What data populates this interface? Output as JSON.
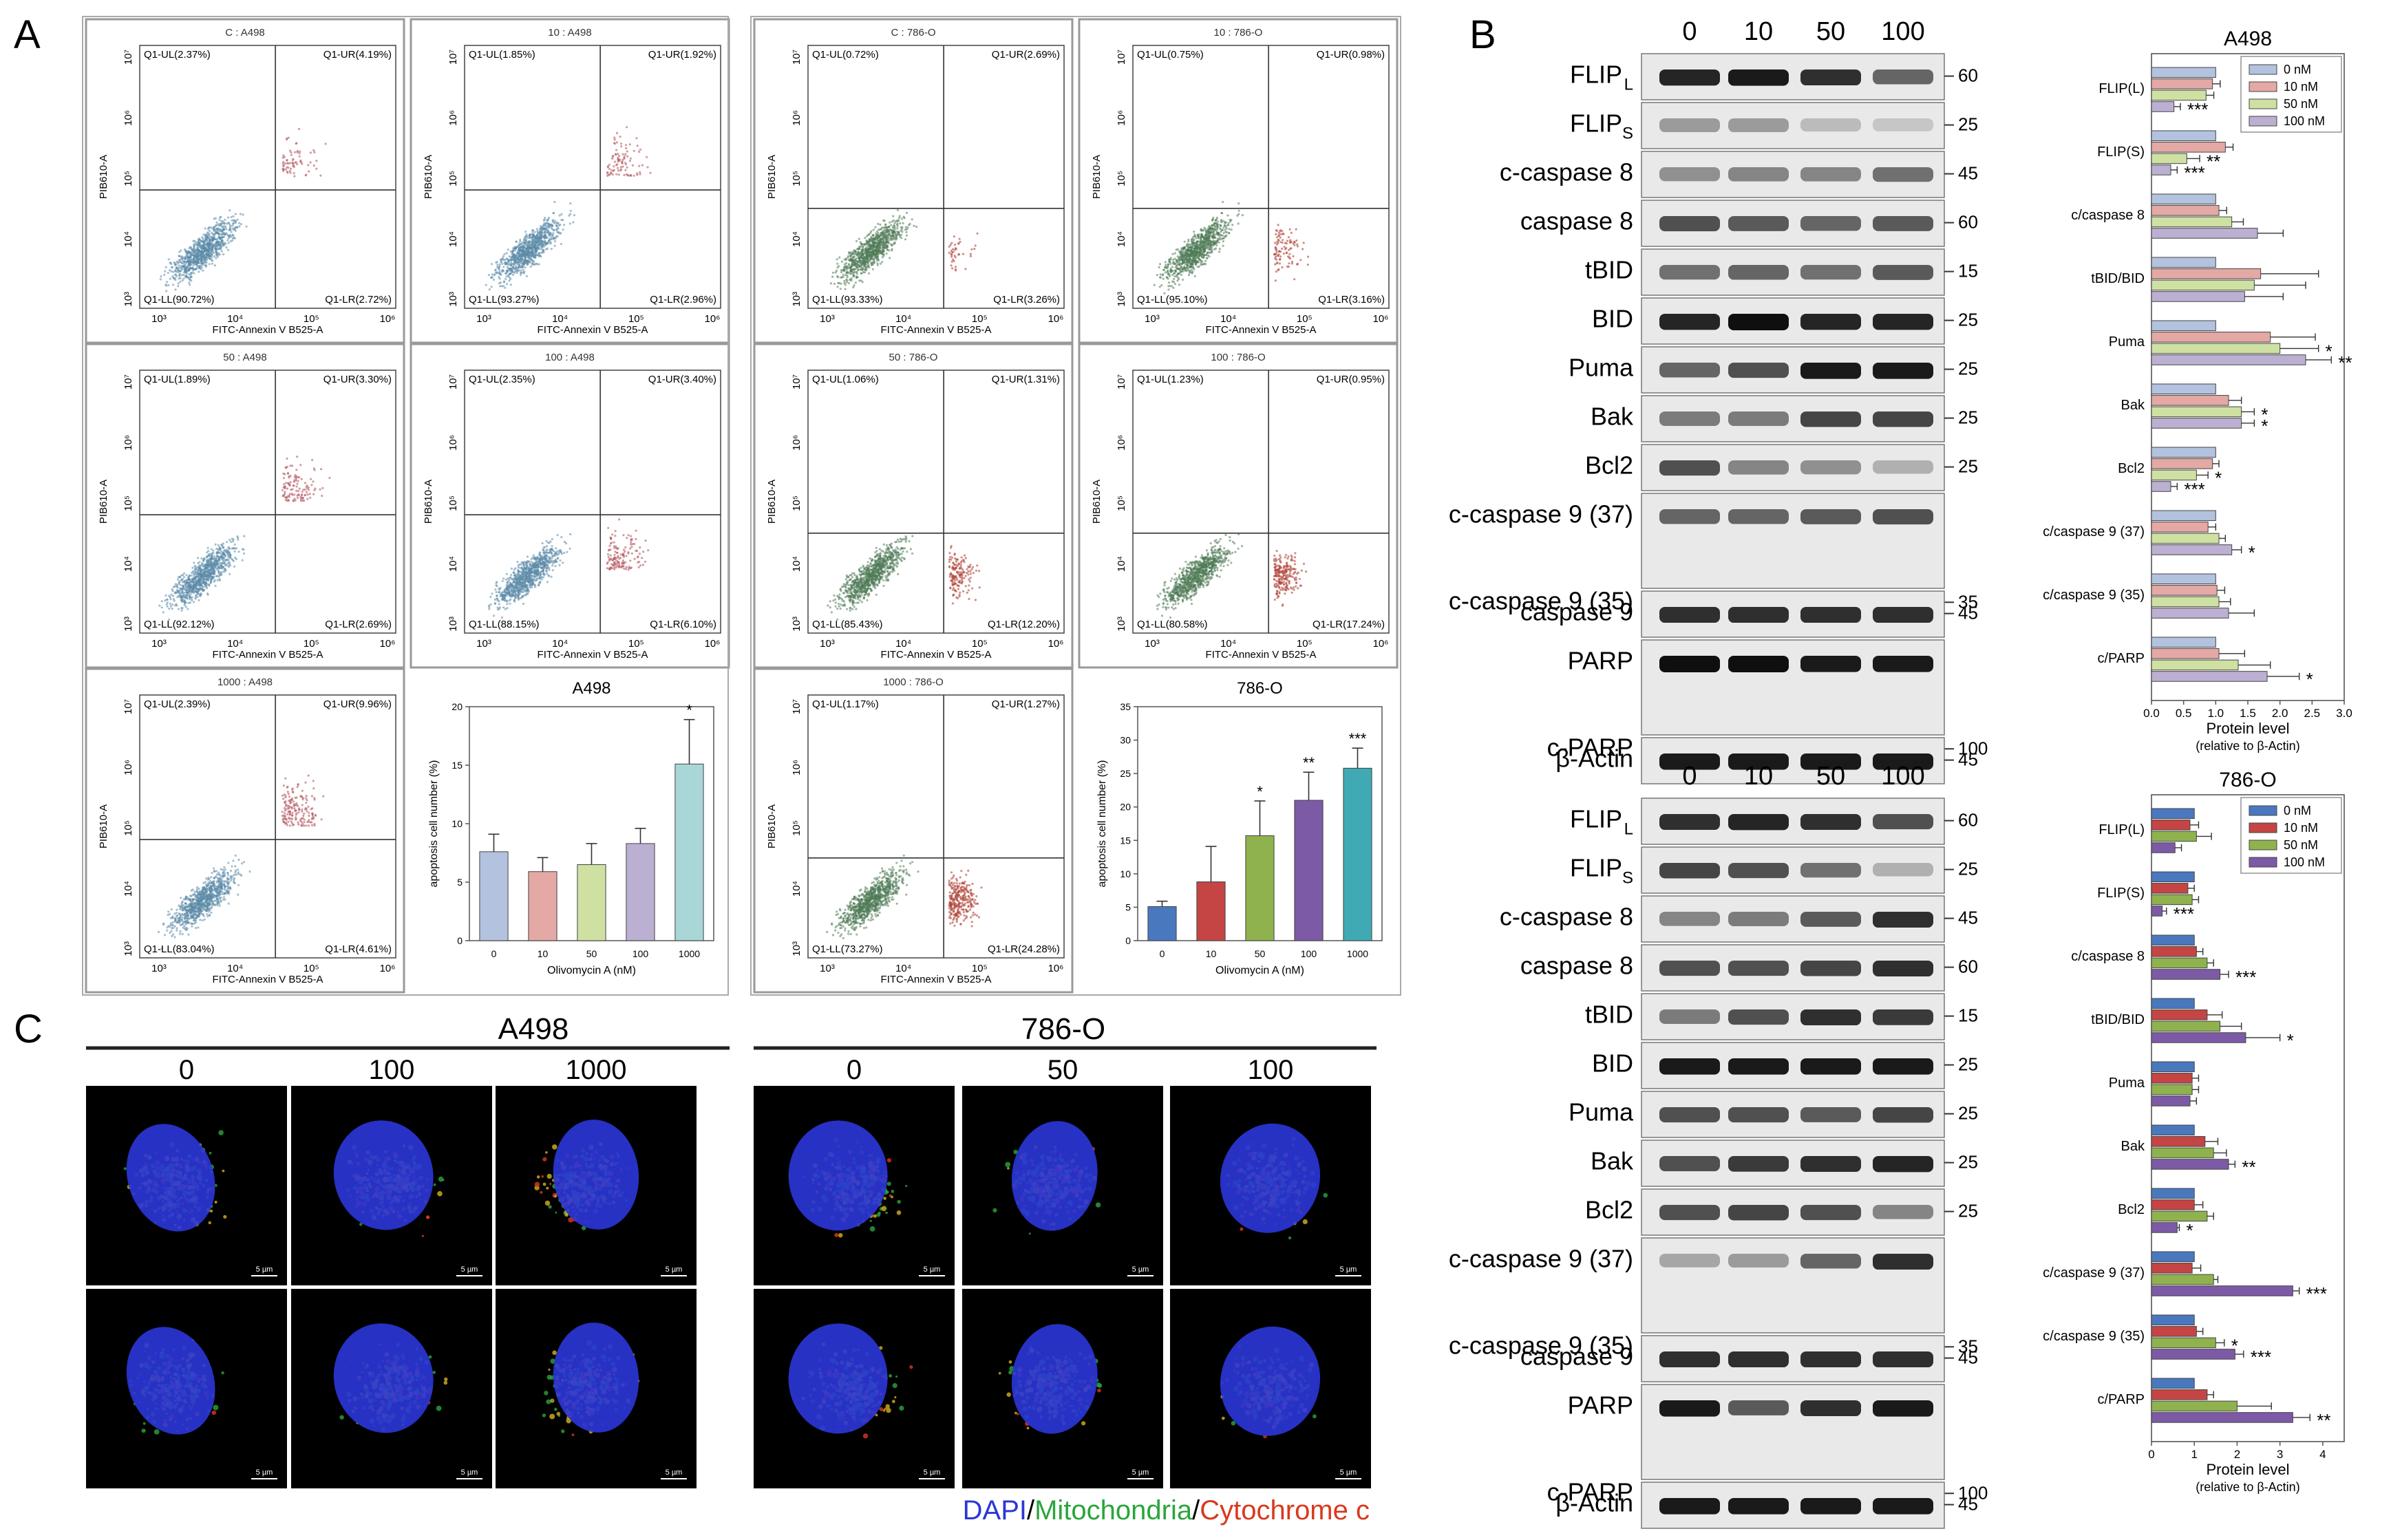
{
  "panels": {
    "a": "A",
    "b": "B",
    "c": "C"
  },
  "colors": {
    "a498_dots": "#5b8aa8",
    "a498_dots_ur": "#b65a62",
    "o786_dots": "#4f7a56",
    "o786_dots_lr": "#b0463a",
    "a498_bars": [
      "#b3c2de",
      "#e4a8a5",
      "#cfe0a3",
      "#bcb0d2",
      "#a9d6d6"
    ],
    "o786_bars": [
      "#4a78bf",
      "#c44544",
      "#8fb24e",
      "#7c5aa6",
      "#3faab3"
    ],
    "dapi": "#2b36d8",
    "mito": "#2aa53a",
    "cyto": "#d9391e",
    "blot_band": "#161616"
  },
  "flow": {
    "x_axis_label": "FITC-Annexin V B525-A",
    "y_axis_label": "PIB610-A",
    "x_ticks": [
      "10³",
      "10⁴",
      "10⁵",
      "10⁶"
    ],
    "y_ticks": [
      "10³",
      "10⁴",
      "10⁵",
      "10⁶",
      "10⁷"
    ],
    "a498": [
      {
        "title": "C : A498",
        "ul": "Q1-UL(2.37%)",
        "ur": "Q1-UR(4.19%)",
        "ll": "Q1-LL(90.72%)",
        "lr": "Q1-LR(2.72%)"
      },
      {
        "title": "10 : A498",
        "ul": "Q1-UL(1.85%)",
        "ur": "Q1-UR(1.92%)",
        "ll": "Q1-LL(93.27%)",
        "lr": "Q1-LR(2.96%)"
      },
      {
        "title": "50 : A498",
        "ul": "Q1-UL(1.89%)",
        "ur": "Q1-UR(3.30%)",
        "ll": "Q1-LL(92.12%)",
        "lr": "Q1-LR(2.69%)"
      },
      {
        "title": "100 : A498",
        "ul": "Q1-UL(2.35%)",
        "ur": "Q1-UR(3.40%)",
        "ll": "Q1-LL(88.15%)",
        "lr": "Q1-LR(6.10%)"
      },
      {
        "title": "1000 : A498",
        "ul": "Q1-UL(2.39%)",
        "ur": "Q1-UR(9.96%)",
        "ll": "Q1-LL(83.04%)",
        "lr": "Q1-LR(4.61%)"
      }
    ],
    "o786": [
      {
        "title": "C : 786-O",
        "ul": "Q1-UL(0.72%)",
        "ur": "Q1-UR(2.69%)",
        "ll": "Q1-LL(93.33%)",
        "lr": "Q1-LR(3.26%)"
      },
      {
        "title": "10 : 786-O",
        "ul": "Q1-UL(0.75%)",
        "ur": "Q1-UR(0.98%)",
        "ll": "Q1-LL(95.10%)",
        "lr": "Q1-LR(3.16%)"
      },
      {
        "title": "50 : 786-O",
        "ul": "Q1-UL(1.06%)",
        "ur": "Q1-UR(1.31%)",
        "ll": "Q1-LL(85.43%)",
        "lr": "Q1-LR(12.20%)"
      },
      {
        "title": "100 : 786-O",
        "ul": "Q1-UL(1.23%)",
        "ur": "Q1-UR(0.95%)",
        "ll": "Q1-LL(80.58%)",
        "lr": "Q1-LR(17.24%)"
      },
      {
        "title": "1000 : 786-O",
        "ul": "Q1-UL(1.17%)",
        "ur": "Q1-UR(1.27%)",
        "ll": "Q1-LL(73.27%)",
        "lr": "Q1-LR(24.28%)"
      }
    ]
  },
  "chart_data": [
    {
      "type": "bar",
      "title": "A498",
      "categories": [
        "0",
        "10",
        "50",
        "100",
        "1000"
      ],
      "values": [
        7.6,
        5.9,
        6.5,
        8.3,
        15.1
      ],
      "errors": [
        1.5,
        1.2,
        1.8,
        1.3,
        3.8
      ],
      "significance": [
        "",
        "",
        "",
        "",
        "*"
      ],
      "xlabel": "Olivomycin A (nM)",
      "ylabel": "apoptosis cell number (%)",
      "ylim": [
        0,
        20
      ],
      "yticks": [
        0,
        5,
        10,
        15,
        20
      ]
    },
    {
      "type": "bar",
      "title": "786-O",
      "categories": [
        "0",
        "10",
        "50",
        "100",
        "1000"
      ],
      "values": [
        5.1,
        8.8,
        15.7,
        21.0,
        25.8
      ],
      "errors": [
        0.8,
        5.3,
        5.2,
        4.2,
        3.0
      ],
      "significance": [
        "",
        "",
        "*",
        "**",
        "***"
      ],
      "xlabel": "Olivomycin A (nM)",
      "ylabel": "apoptosis cell number (%)",
      "ylim": [
        0,
        35
      ],
      "yticks": [
        0,
        5,
        10,
        15,
        20,
        25,
        30,
        35
      ]
    },
    {
      "type": "bar",
      "orientation": "horizontal",
      "title": "A498",
      "categories": [
        "FLIP(L)",
        "FLIP(S)",
        "c/caspase 8",
        "tBID/BID",
        "Puma",
        "Bak",
        "Bcl2",
        "c/caspase 9 (37)",
        "c/caspase 9 (35)",
        "c/PARP"
      ],
      "series": [
        {
          "name": "0 nM",
          "values": [
            1,
            1,
            1,
            1,
            1,
            1,
            1,
            1,
            1,
            1
          ],
          "errors": [
            0,
            0,
            0,
            0,
            0,
            0,
            0,
            0,
            0,
            0
          ]
        },
        {
          "name": "10 nM",
          "values": [
            0.95,
            1.15,
            1.05,
            1.7,
            1.85,
            1.2,
            0.95,
            0.88,
            1.02,
            1.05
          ],
          "errors": [
            0.12,
            0.12,
            0.12,
            0.9,
            0.7,
            0.2,
            0.1,
            0.12,
            0.12,
            0.4
          ]
        },
        {
          "name": "50 nM",
          "values": [
            0.85,
            0.55,
            1.25,
            1.6,
            2.0,
            1.4,
            0.7,
            1.05,
            1.05,
            1.35
          ],
          "errors": [
            0.12,
            0.2,
            0.18,
            0.8,
            0.6,
            0.2,
            0.18,
            0.1,
            0.18,
            0.5
          ]
        },
        {
          "name": "100 nM",
          "values": [
            0.35,
            0.3,
            1.65,
            1.45,
            2.4,
            1.4,
            0.3,
            1.25,
            1.2,
            1.8
          ],
          "errors": [
            0.1,
            0.1,
            0.4,
            0.6,
            0.4,
            0.2,
            0.1,
            0.15,
            0.4,
            0.5
          ]
        }
      ],
      "significance": {
        "FLIP(L)": [
          "",
          "",
          "",
          "***"
        ],
        "FLIP(S)": [
          "",
          "",
          "**",
          "***"
        ],
        "Puma": [
          "",
          "",
          "*",
          "**"
        ],
        "Bak": [
          "",
          "",
          "*",
          "*"
        ],
        "Bcl2": [
          "",
          "",
          "*",
          "***"
        ],
        "c/caspase 9 (37)": [
          "",
          "",
          "",
          "*"
        ],
        "c/PARP": [
          "",
          "",
          "",
          "*"
        ]
      },
      "xlabel": "Protein level",
      "xlabel2": "(relative to β-Actin)",
      "xlim": [
        0,
        3.0
      ],
      "xticks": [
        "0.0",
        "0.5",
        "1.0",
        "1.5",
        "2.0",
        "2.5",
        "3.0"
      ],
      "legend": "top-right"
    },
    {
      "type": "bar",
      "orientation": "horizontal",
      "title": "786-O",
      "categories": [
        "FLIP(L)",
        "FLIP(S)",
        "c/caspase 8",
        "tBID/BID",
        "Puma",
        "Bak",
        "Bcl2",
        "c/caspase 9 (37)",
        "c/caspase 9 (35)",
        "c/PARP"
      ],
      "series": [
        {
          "name": "0 nM",
          "values": [
            1,
            1,
            1,
            1,
            1,
            1,
            1,
            1,
            1,
            1
          ],
          "errors": [
            0,
            0,
            0,
            0,
            0,
            0,
            0,
            0,
            0,
            0
          ]
        },
        {
          "name": "10 nM",
          "values": [
            0.9,
            0.85,
            1.05,
            1.3,
            0.95,
            1.25,
            1.0,
            0.95,
            1.05,
            1.3
          ],
          "errors": [
            0.2,
            0.15,
            0.15,
            0.35,
            0.15,
            0.3,
            0.2,
            0.2,
            0.15,
            0.15
          ]
        },
        {
          "name": "50 nM",
          "values": [
            1.05,
            0.95,
            1.3,
            1.6,
            0.95,
            1.45,
            1.3,
            1.45,
            1.5,
            2.0
          ],
          "errors": [
            0.35,
            0.15,
            0.15,
            0.5,
            0.15,
            0.3,
            0.15,
            0.1,
            0.2,
            0.8
          ]
        },
        {
          "name": "100 nM",
          "values": [
            0.55,
            0.25,
            1.6,
            2.2,
            0.9,
            1.8,
            0.6,
            3.3,
            1.95,
            3.3
          ],
          "errors": [
            0.15,
            0.1,
            0.2,
            0.8,
            0.15,
            0.15,
            0.05,
            0.15,
            0.2,
            0.4
          ]
        }
      ],
      "significance": {
        "FLIP(S)": [
          "",
          "",
          "",
          "***"
        ],
        "c/caspase 8": [
          "",
          "",
          "",
          "***"
        ],
        "tBID/BID": [
          "",
          "",
          "",
          "*"
        ],
        "Bak": [
          "",
          "",
          "",
          "**"
        ],
        "Bcl2": [
          "",
          "",
          "",
          "*"
        ],
        "c/caspase 9 (37)": [
          "",
          "",
          "",
          "***"
        ],
        "c/caspase 9 (35)": [
          "",
          "",
          "*",
          "***"
        ],
        "c/PARP": [
          "",
          "",
          "",
          "**"
        ]
      },
      "xlabel": "Protein level",
      "xlabel2": "(relative to β-Actin)",
      "xlim": [
        0,
        4.5
      ],
      "xticks": [
        "0",
        "1",
        "2",
        "3",
        "4"
      ],
      "legend": "top-right"
    }
  ],
  "blots": {
    "a498": {
      "lanes": [
        "0",
        "10",
        "50",
        "100"
      ],
      "rows": [
        {
          "label": "FLIP",
          "sub": "L",
          "marker": "60",
          "intensity": [
            0.9,
            0.95,
            0.85,
            0.6
          ]
        },
        {
          "label": "FLIP",
          "sub": "S",
          "marker": "25",
          "intensity": [
            0.35,
            0.35,
            0.2,
            0.15
          ]
        },
        {
          "label": "c-caspase 8",
          "sub": "",
          "marker": "45",
          "intensity": [
            0.4,
            0.45,
            0.45,
            0.55
          ]
        },
        {
          "label": "caspase 8",
          "sub": "",
          "marker": "60",
          "intensity": [
            0.7,
            0.65,
            0.6,
            0.65
          ]
        },
        {
          "label": "tBID",
          "sub": "",
          "marker": "15",
          "intensity": [
            0.55,
            0.6,
            0.55,
            0.65
          ]
        },
        {
          "label": "BID",
          "sub": "",
          "marker": "25",
          "intensity": [
            0.9,
            1.0,
            0.9,
            0.9
          ]
        },
        {
          "label": "Puma",
          "sub": "",
          "marker": "25",
          "intensity": [
            0.6,
            0.7,
            0.95,
            0.95
          ]
        },
        {
          "label": "Bak",
          "sub": "",
          "marker": "25",
          "intensity": [
            0.5,
            0.5,
            0.75,
            0.75
          ]
        },
        {
          "label": "Bcl2",
          "sub": "",
          "marker": "25",
          "intensity": [
            0.7,
            0.45,
            0.4,
            0.25
          ]
        },
        {
          "label": "c-caspase 9 (37)",
          "sub": "",
          "marker": "",
          "intensity": [
            0.6,
            0.6,
            0.65,
            0.7
          ]
        },
        {
          "label": "c-caspase 9 (35)",
          "sub": "",
          "marker": "35",
          "intensity": [
            0.6,
            0.6,
            0.6,
            0.6
          ]
        },
        {
          "label": "caspase 9",
          "sub": "",
          "marker": "45",
          "intensity": [
            0.85,
            0.85,
            0.85,
            0.85
          ]
        },
        {
          "label": "PARP",
          "sub": "",
          "marker": "",
          "intensity": [
            1.0,
            1.0,
            0.95,
            0.95
          ]
        },
        {
          "label": "c-PARP",
          "sub": "",
          "marker": "100",
          "intensity": [
            0.2,
            0.25,
            0.25,
            0.3
          ]
        },
        {
          "label": "β-Actin",
          "sub": "",
          "marker": "45",
          "intensity": [
            0.95,
            0.95,
            0.95,
            0.95
          ]
        }
      ]
    },
    "o786": {
      "lanes": [
        "0",
        "10",
        "50",
        "100"
      ],
      "rows": [
        {
          "label": "FLIP",
          "sub": "L",
          "marker": "60",
          "intensity": [
            0.85,
            0.9,
            0.85,
            0.7
          ]
        },
        {
          "label": "FLIP",
          "sub": "S",
          "marker": "25",
          "intensity": [
            0.75,
            0.7,
            0.55,
            0.25
          ]
        },
        {
          "label": "c-caspase 8",
          "sub": "",
          "marker": "45",
          "intensity": [
            0.45,
            0.5,
            0.65,
            0.85
          ]
        },
        {
          "label": "caspase 8",
          "sub": "",
          "marker": "60",
          "intensity": [
            0.7,
            0.7,
            0.75,
            0.85
          ]
        },
        {
          "label": "tBID",
          "sub": "",
          "marker": "15",
          "intensity": [
            0.5,
            0.7,
            0.85,
            0.8
          ]
        },
        {
          "label": "BID",
          "sub": "",
          "marker": "25",
          "intensity": [
            0.95,
            0.95,
            0.95,
            0.95
          ]
        },
        {
          "label": "Puma",
          "sub": "",
          "marker": "25",
          "intensity": [
            0.7,
            0.7,
            0.65,
            0.75
          ]
        },
        {
          "label": "Bak",
          "sub": "",
          "marker": "25",
          "intensity": [
            0.7,
            0.8,
            0.85,
            0.9
          ]
        },
        {
          "label": "Bcl2",
          "sub": "",
          "marker": "25",
          "intensity": [
            0.7,
            0.75,
            0.7,
            0.45
          ]
        },
        {
          "label": "c-caspase 9 (37)",
          "sub": "",
          "marker": "",
          "intensity": [
            0.3,
            0.35,
            0.6,
            0.85
          ]
        },
        {
          "label": "c-caspase 9 (35)",
          "sub": "",
          "marker": "35",
          "intensity": [
            0.45,
            0.5,
            0.65,
            0.85
          ]
        },
        {
          "label": "caspase 9",
          "sub": "",
          "marker": "45",
          "intensity": [
            0.85,
            0.85,
            0.85,
            0.85
          ]
        },
        {
          "label": "PARP",
          "sub": "",
          "marker": "",
          "intensity": [
            0.95,
            0.65,
            0.85,
            0.95
          ]
        },
        {
          "label": "c-PARP",
          "sub": "",
          "marker": "100",
          "intensity": [
            0.15,
            0.2,
            0.55,
            0.8
          ]
        },
        {
          "label": "β-Actin",
          "sub": "",
          "marker": "45",
          "intensity": [
            0.95,
            0.95,
            0.95,
            0.95
          ]
        }
      ]
    }
  },
  "micrographs": {
    "a498_title": "A498",
    "o786_title": "786-O",
    "a498_doses": [
      "0",
      "100",
      "1000"
    ],
    "o786_doses": [
      "0",
      "50",
      "100"
    ],
    "scale_label": "5 µm",
    "legend": {
      "dapi": "DAPI",
      "sep": "/",
      "mito": "Mitochondria",
      "cyto": "Cytochrome c"
    }
  }
}
